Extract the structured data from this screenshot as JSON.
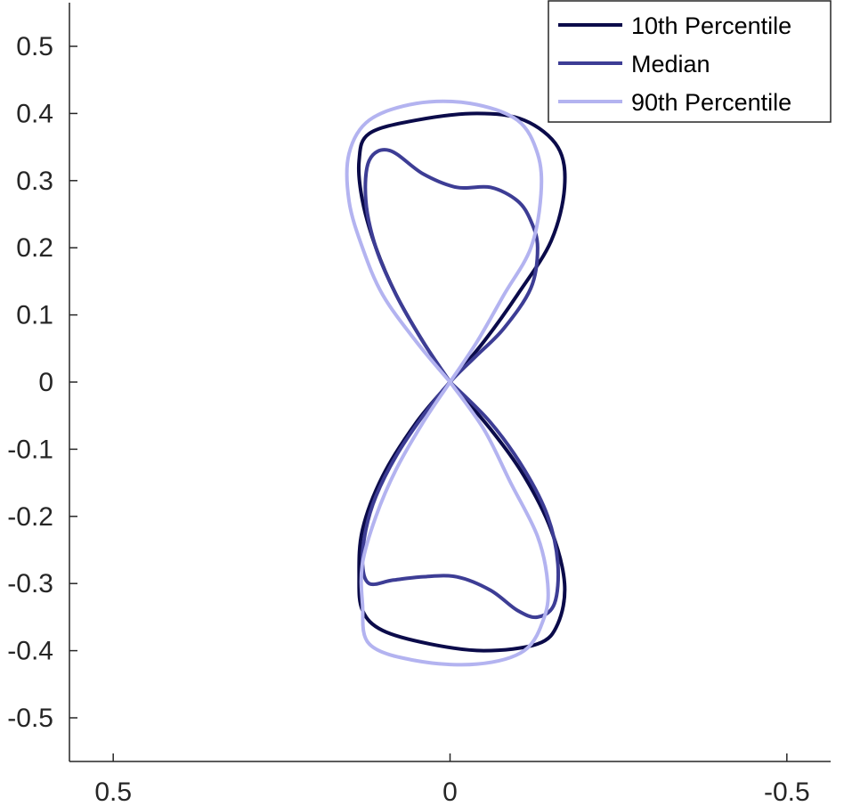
{
  "chart_data": {
    "type": "line",
    "title": "",
    "xlabel": "",
    "ylabel": "",
    "xlim": [
      0.565,
      -0.565
    ],
    "ylim": [
      -0.565,
      0.565
    ],
    "x_reversed": true,
    "grid": false,
    "legend_position": "top-right",
    "xticks": [
      0.5,
      0,
      -0.5
    ],
    "xtick_labels": [
      "0.5",
      "0",
      "-0.5"
    ],
    "yticks": [
      0.5,
      0.4,
      0.3,
      0.2,
      0.1,
      0,
      -0.1,
      -0.2,
      -0.3,
      -0.4,
      -0.5
    ],
    "ytick_labels": [
      "0.5",
      "0.4",
      "0.3",
      "0.2",
      "0.1",
      "0",
      "-0.1",
      "-0.2",
      "-0.3",
      "-0.4",
      "-0.5"
    ],
    "series": [
      {
        "name": "10th Percentile",
        "color": "#0b0b4a",
        "points": [
          [
            0,
            0
          ],
          [
            0.04,
            0.06
          ],
          [
            0.08,
            0.13
          ],
          [
            0.11,
            0.2
          ],
          [
            0.13,
            0.27
          ],
          [
            0.135,
            0.33
          ],
          [
            0.12,
            0.37
          ],
          [
            0.05,
            0.39
          ],
          [
            -0.04,
            0.4
          ],
          [
            -0.11,
            0.39
          ],
          [
            -0.16,
            0.35
          ],
          [
            -0.17,
            0.29
          ],
          [
            -0.15,
            0.21
          ],
          [
            -0.1,
            0.13
          ],
          [
            -0.05,
            0.06
          ],
          [
            0,
            0
          ],
          [
            0.05,
            -0.06
          ],
          [
            0.1,
            -0.14
          ],
          [
            0.13,
            -0.22
          ],
          [
            0.135,
            -0.29
          ],
          [
            0.13,
            -0.34
          ],
          [
            0.1,
            -0.37
          ],
          [
            0.03,
            -0.39
          ],
          [
            -0.05,
            -0.4
          ],
          [
            -0.13,
            -0.39
          ],
          [
            -0.16,
            -0.36
          ],
          [
            -0.17,
            -0.3
          ],
          [
            -0.15,
            -0.22
          ],
          [
            -0.11,
            -0.14
          ],
          [
            -0.06,
            -0.07
          ],
          [
            0,
            0
          ]
        ]
      },
      {
        "name": "Median",
        "color": "#3d3d95",
        "points": [
          [
            0,
            0
          ],
          [
            0.04,
            0.06
          ],
          [
            0.08,
            0.13
          ],
          [
            0.11,
            0.2
          ],
          [
            0.125,
            0.27
          ],
          [
            0.12,
            0.33
          ],
          [
            0.09,
            0.345
          ],
          [
            0.04,
            0.31
          ],
          [
            -0.01,
            0.29
          ],
          [
            -0.06,
            0.29
          ],
          [
            -0.1,
            0.27
          ],
          [
            -0.12,
            0.24
          ],
          [
            -0.13,
            0.2
          ],
          [
            -0.12,
            0.14
          ],
          [
            -0.08,
            0.08
          ],
          [
            -0.04,
            0.04
          ],
          [
            0,
            0
          ],
          [
            0.04,
            -0.05
          ],
          [
            0.08,
            -0.11
          ],
          [
            0.11,
            -0.17
          ],
          [
            0.125,
            -0.22
          ],
          [
            0.13,
            -0.27
          ],
          [
            0.12,
            -0.3
          ],
          [
            0.085,
            -0.295
          ],
          [
            0.04,
            -0.29
          ],
          [
            -0.01,
            -0.29
          ],
          [
            -0.06,
            -0.31
          ],
          [
            -0.1,
            -0.34
          ],
          [
            -0.13,
            -0.35
          ],
          [
            -0.155,
            -0.33
          ],
          [
            -0.16,
            -0.27
          ],
          [
            -0.145,
            -0.2
          ],
          [
            -0.11,
            -0.13
          ],
          [
            -0.06,
            -0.06
          ],
          [
            0,
            0
          ]
        ]
      },
      {
        "name": "90th Percentile",
        "color": "#b3b3f0",
        "points": [
          [
            0,
            0
          ],
          [
            0.05,
            0.06
          ],
          [
            0.1,
            0.13
          ],
          [
            0.13,
            0.2
          ],
          [
            0.15,
            0.27
          ],
          [
            0.15,
            0.34
          ],
          [
            0.12,
            0.39
          ],
          [
            0.05,
            0.415
          ],
          [
            -0.03,
            0.415
          ],
          [
            -0.1,
            0.39
          ],
          [
            -0.13,
            0.34
          ],
          [
            -0.135,
            0.28
          ],
          [
            -0.12,
            0.2
          ],
          [
            -0.08,
            0.13
          ],
          [
            -0.04,
            0.06
          ],
          [
            0,
            0
          ],
          [
            0.04,
            -0.06
          ],
          [
            0.08,
            -0.13
          ],
          [
            0.11,
            -0.2
          ],
          [
            0.13,
            -0.27
          ],
          [
            0.13,
            -0.33
          ],
          [
            0.12,
            -0.39
          ],
          [
            0.05,
            -0.415
          ],
          [
            -0.04,
            -0.42
          ],
          [
            -0.11,
            -0.4
          ],
          [
            -0.14,
            -0.35
          ],
          [
            -0.145,
            -0.3
          ],
          [
            -0.13,
            -0.23
          ],
          [
            -0.09,
            -0.15
          ],
          [
            -0.05,
            -0.07
          ],
          [
            0,
            0
          ]
        ]
      }
    ]
  }
}
